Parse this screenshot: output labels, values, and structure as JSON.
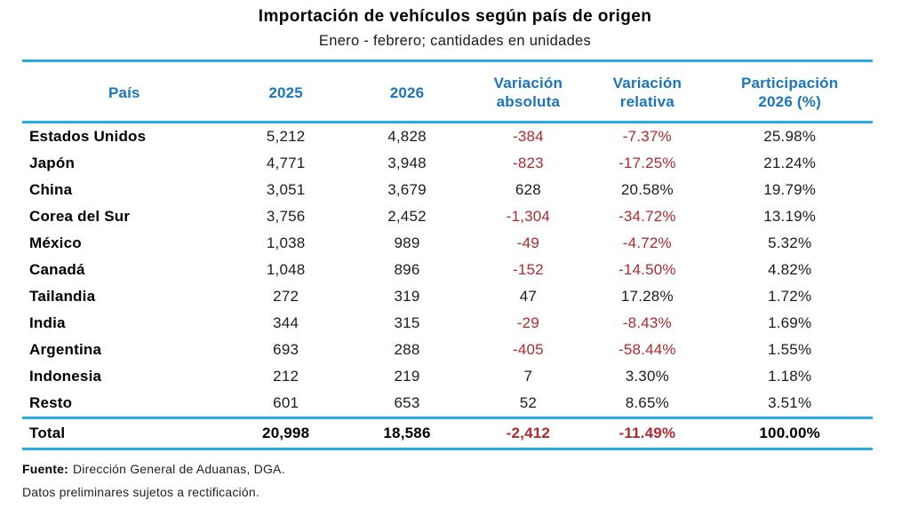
{
  "title": "Importación de vehículos según país de origen",
  "subtitle": "Enero - febrero; cantidades en unidades",
  "colors": {
    "header_blue": "#1B75BC",
    "rule_cyan": "#29ABE2",
    "negative_red": "#B02A30",
    "body_text": "#1C1C1C"
  },
  "table": {
    "columns": [
      {
        "id": "pais",
        "lines": [
          "País"
        ]
      },
      {
        "id": "y2025",
        "lines": [
          "2025"
        ]
      },
      {
        "id": "y2026",
        "lines": [
          "2026"
        ]
      },
      {
        "id": "var_abs",
        "lines": [
          "Variación",
          "absoluta"
        ]
      },
      {
        "id": "var_rel",
        "lines": [
          "Variación",
          "relativa"
        ]
      },
      {
        "id": "part",
        "lines": [
          "Participación",
          "2026 (%)"
        ]
      }
    ],
    "rows": [
      {
        "pais": "Estados Unidos",
        "y2025": "5,212",
        "y2026": "4,828",
        "var_abs": "-384",
        "var_rel": "-7.37%",
        "part": "25.98%"
      },
      {
        "pais": "Japón",
        "y2025": "4,771",
        "y2026": "3,948",
        "var_abs": "-823",
        "var_rel": "-17.25%",
        "part": "21.24%"
      },
      {
        "pais": "China",
        "y2025": "3,051",
        "y2026": "3,679",
        "var_abs": "628",
        "var_rel": "20.58%",
        "part": "19.79%"
      },
      {
        "pais": "Corea del Sur",
        "y2025": "3,756",
        "y2026": "2,452",
        "var_abs": "-1,304",
        "var_rel": "-34.72%",
        "part": "13.19%"
      },
      {
        "pais": "México",
        "y2025": "1,038",
        "y2026": "989",
        "var_abs": "-49",
        "var_rel": "-4.72%",
        "part": "5.32%"
      },
      {
        "pais": "Canadá",
        "y2025": "1,048",
        "y2026": "896",
        "var_abs": "-152",
        "var_rel": "-14.50%",
        "part": "4.82%"
      },
      {
        "pais": "Tailandia",
        "y2025": "272",
        "y2026": "319",
        "var_abs": "47",
        "var_rel": "17.28%",
        "part": "1.72%"
      },
      {
        "pais": "India",
        "y2025": "344",
        "y2026": "315",
        "var_abs": "-29",
        "var_rel": "-8.43%",
        "part": "1.69%"
      },
      {
        "pais": "Argentina",
        "y2025": "693",
        "y2026": "288",
        "var_abs": "-405",
        "var_rel": "-58.44%",
        "part": "1.55%"
      },
      {
        "pais": "Indonesia",
        "y2025": "212",
        "y2026": "219",
        "var_abs": "7",
        "var_rel": "3.30%",
        "part": "1.18%"
      },
      {
        "pais": "Resto",
        "y2025": "601",
        "y2026": "653",
        "var_abs": "52",
        "var_rel": "8.65%",
        "part": "3.51%"
      }
    ],
    "total": {
      "pais": "Total",
      "y2025": "20,998",
      "y2026": "18,586",
      "var_abs": "-2,412",
      "var_rel": "-11.49%",
      "part": "100.00%"
    }
  },
  "footer": {
    "source_label": "Fuente:",
    "source_text": "Dirección General de Aduanas, DGA.",
    "note": "Datos preliminares sujetos a rectificación."
  },
  "chart_data": {
    "type": "table",
    "title": "Importación de vehículos según país de origen",
    "subtitle": "Enero - febrero; cantidades en unidades",
    "columns": [
      "País",
      "2025",
      "2026",
      "Variación absoluta",
      "Variación relativa",
      "Participación 2026 (%)"
    ],
    "rows": [
      [
        "Estados Unidos",
        5212,
        4828,
        -384,
        "-7.37%",
        "25.98%"
      ],
      [
        "Japón",
        4771,
        3948,
        -823,
        "-17.25%",
        "21.24%"
      ],
      [
        "China",
        3051,
        3679,
        628,
        "20.58%",
        "19.79%"
      ],
      [
        "Corea del Sur",
        3756,
        2452,
        -1304,
        "-34.72%",
        "13.19%"
      ],
      [
        "México",
        1038,
        989,
        -49,
        "-4.72%",
        "5.32%"
      ],
      [
        "Canadá",
        1048,
        896,
        -152,
        "-14.50%",
        "4.82%"
      ],
      [
        "Tailandia",
        272,
        319,
        47,
        "17.28%",
        "1.72%"
      ],
      [
        "India",
        344,
        315,
        -29,
        "-8.43%",
        "1.69%"
      ],
      [
        "Argentina",
        693,
        288,
        -405,
        "-58.44%",
        "1.55%"
      ],
      [
        "Indonesia",
        212,
        219,
        7,
        "3.30%",
        "1.18%"
      ],
      [
        "Resto",
        601,
        653,
        52,
        "8.65%",
        "3.51%"
      ]
    ],
    "total": [
      "Total",
      20998,
      18586,
      -2412,
      "-11.49%",
      "100.00%"
    ],
    "notes": [
      "Fuente: Dirección General de Aduanas, DGA.",
      "Datos preliminares sujetos a rectificación."
    ],
    "negative_values_color": "#B02A30",
    "header_text_color": "#1B75BC",
    "rule_color": "#29ABE2"
  }
}
